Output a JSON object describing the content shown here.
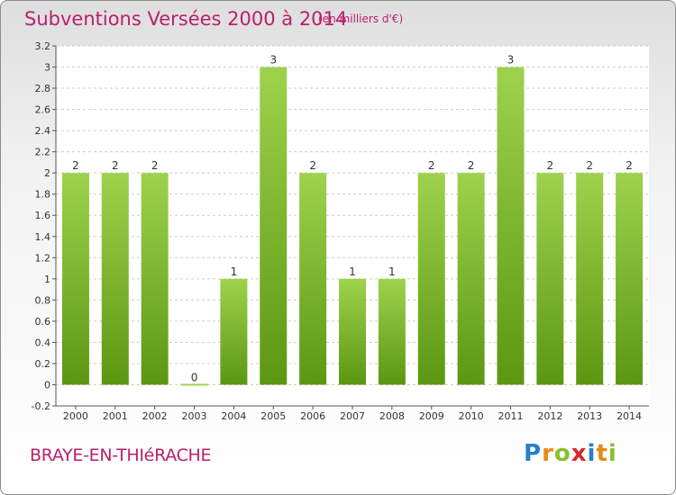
{
  "header": {
    "title": "Subventions Versées 2000 à 2014",
    "subtitle": "(en milliers d'€)"
  },
  "footer": {
    "commune": "BRAYE-EN-THIéRACHE",
    "logo_text": "Proxiti",
    "logo_letters": [
      {
        "ch": "P",
        "color": "#2a7fc7"
      },
      {
        "ch": "r",
        "color": "#e88a17"
      },
      {
        "ch": "o",
        "color": "#8abf2e"
      },
      {
        "ch": "x",
        "color": "#d8262b"
      },
      {
        "ch": "i",
        "color": "#2a7fc7"
      },
      {
        "ch": "t",
        "color": "#e88a17"
      },
      {
        "ch": "i",
        "color": "#8abf2e"
      }
    ]
  },
  "colors": {
    "bar_top": "#9ed24c",
    "bar_bottom": "#5c9712",
    "title": "#b8206e",
    "text": "#333333",
    "grid": "#cccccc"
  },
  "chart_data": {
    "type": "bar",
    "title": "Subventions Versées 2000 à 2014",
    "subtitle": "(en milliers d'€)",
    "categories": [
      "2000",
      "2001",
      "2002",
      "2003",
      "2004",
      "2005",
      "2006",
      "2007",
      "2008",
      "2009",
      "2010",
      "2011",
      "2012",
      "2013",
      "2014"
    ],
    "values": [
      2,
      2,
      2,
      0,
      1,
      3,
      2,
      1,
      1,
      2,
      2,
      3,
      2,
      2,
      2
    ],
    "data_labels": [
      "2",
      "2",
      "2",
      "0",
      "1",
      "3",
      "2",
      "1",
      "1",
      "2",
      "2",
      "3",
      "2",
      "2",
      "2"
    ],
    "yticks": [
      "-0.2",
      "0",
      "0.2",
      "0.4",
      "0.6",
      "0.8",
      "1",
      "1.2",
      "1.4",
      "1.6",
      "1.8",
      "2",
      "2.2",
      "2.4",
      "2.6",
      "2.8",
      "3",
      "3.2"
    ],
    "ylim": [
      -0.2,
      3.2
    ],
    "xlabel": "",
    "ylabel": "",
    "grid": "horizontal dashed",
    "legend": "none"
  }
}
